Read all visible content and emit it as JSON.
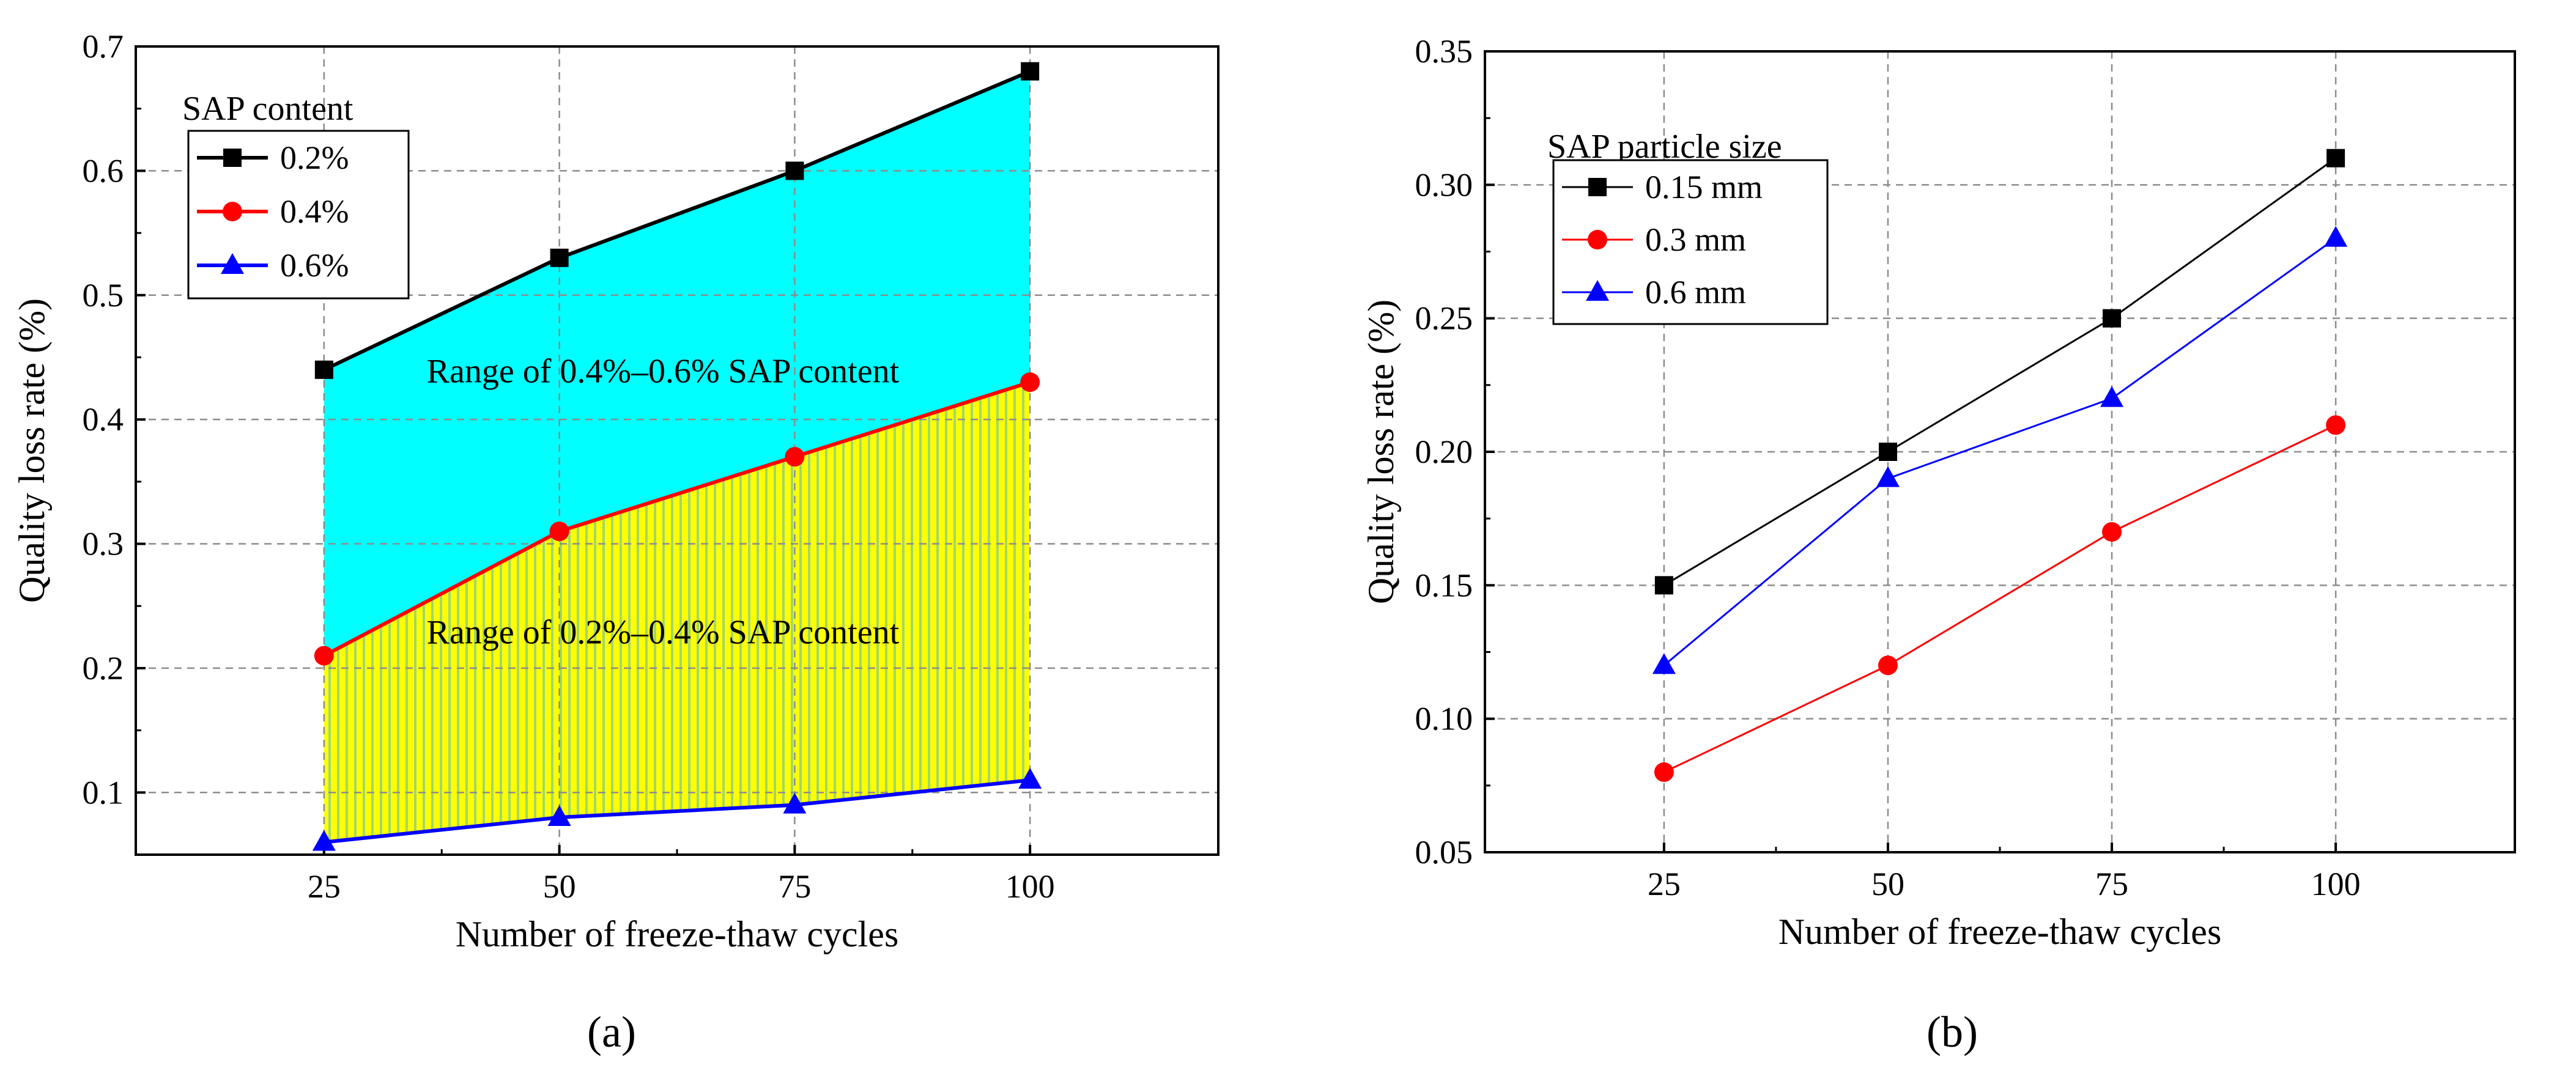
{
  "figure": {
    "panel_labels": [
      "(a)",
      "(b)"
    ]
  },
  "chart_data": [
    {
      "type": "area",
      "panel": "a",
      "title": "",
      "xlabel": "Number of freeze-thaw cycles",
      "ylabel": "Quality loss rate (%)",
      "xlim": [
        5,
        120
      ],
      "ylim": [
        0.05,
        0.7
      ],
      "xticks": [
        25,
        50,
        75,
        100
      ],
      "xtick_labels": [
        "25",
        "50",
        "75",
        "100"
      ],
      "yticks": [
        0.1,
        0.2,
        0.3,
        0.4,
        0.5,
        0.6,
        0.7
      ],
      "ytick_labels": [
        "0.1",
        "0.2",
        "0.3",
        "0.4",
        "0.5",
        "0.6",
        "0.7"
      ],
      "grid": true,
      "x": [
        25,
        50,
        75,
        100
      ],
      "legend_title": "SAP content",
      "legend_position": "top-left",
      "series": [
        {
          "name": "0.2%",
          "values": [
            0.44,
            0.53,
            0.6,
            0.68
          ],
          "color": "#000000",
          "marker": "square"
        },
        {
          "name": "0.4%",
          "values": [
            0.21,
            0.31,
            0.37,
            0.43
          ],
          "color": "#ff0000",
          "marker": "circle"
        },
        {
          "name": "0.6%",
          "values": [
            0.06,
            0.08,
            0.09,
            0.11
          ],
          "color": "#0000ff",
          "marker": "triangle"
        }
      ],
      "fills": [
        {
          "between": [
            "0.2%",
            "0.4%"
          ],
          "color": "#00ffff"
        },
        {
          "between": [
            "0.4%",
            "0.6%"
          ],
          "color": "#ffff00",
          "hatch_color": "#a0d868"
        }
      ],
      "annotations": [
        {
          "text": "Range of 0.4%–0.6% SAP content",
          "x": 61,
          "y": 0.42
        },
        {
          "text": "Range of 0.2%–0.4% SAP content",
          "x": 61,
          "y": 0.21
        }
      ]
    },
    {
      "type": "line",
      "panel": "b",
      "title": "",
      "xlabel": "Number of freeze-thaw cycles",
      "ylabel": "Quality loss rate (%)",
      "xlim": [
        5,
        120
      ],
      "ylim": [
        0.05,
        0.35
      ],
      "xticks": [
        25,
        50,
        75,
        100
      ],
      "xtick_labels": [
        "25",
        "50",
        "75",
        "100"
      ],
      "yticks": [
        0.05,
        0.1,
        0.15,
        0.2,
        0.25,
        0.3,
        0.35
      ],
      "ytick_labels": [
        "0.05",
        "0.10",
        "0.15",
        "0.20",
        "0.25",
        "0.30",
        "0.35"
      ],
      "grid": true,
      "x": [
        25,
        50,
        75,
        100
      ],
      "legend_title": "SAP particle size",
      "legend_position": "top-left",
      "series": [
        {
          "name": "0.15 mm",
          "values": [
            0.15,
            0.2,
            0.25,
            0.31
          ],
          "color": "#000000",
          "marker": "square"
        },
        {
          "name": "0.3 mm",
          "values": [
            0.08,
            0.12,
            0.17,
            0.21
          ],
          "color": "#ff0000",
          "marker": "circle"
        },
        {
          "name": "0.6 mm",
          "values": [
            0.12,
            0.19,
            0.22,
            0.28
          ],
          "color": "#0000ff",
          "marker": "triangle"
        }
      ]
    }
  ]
}
